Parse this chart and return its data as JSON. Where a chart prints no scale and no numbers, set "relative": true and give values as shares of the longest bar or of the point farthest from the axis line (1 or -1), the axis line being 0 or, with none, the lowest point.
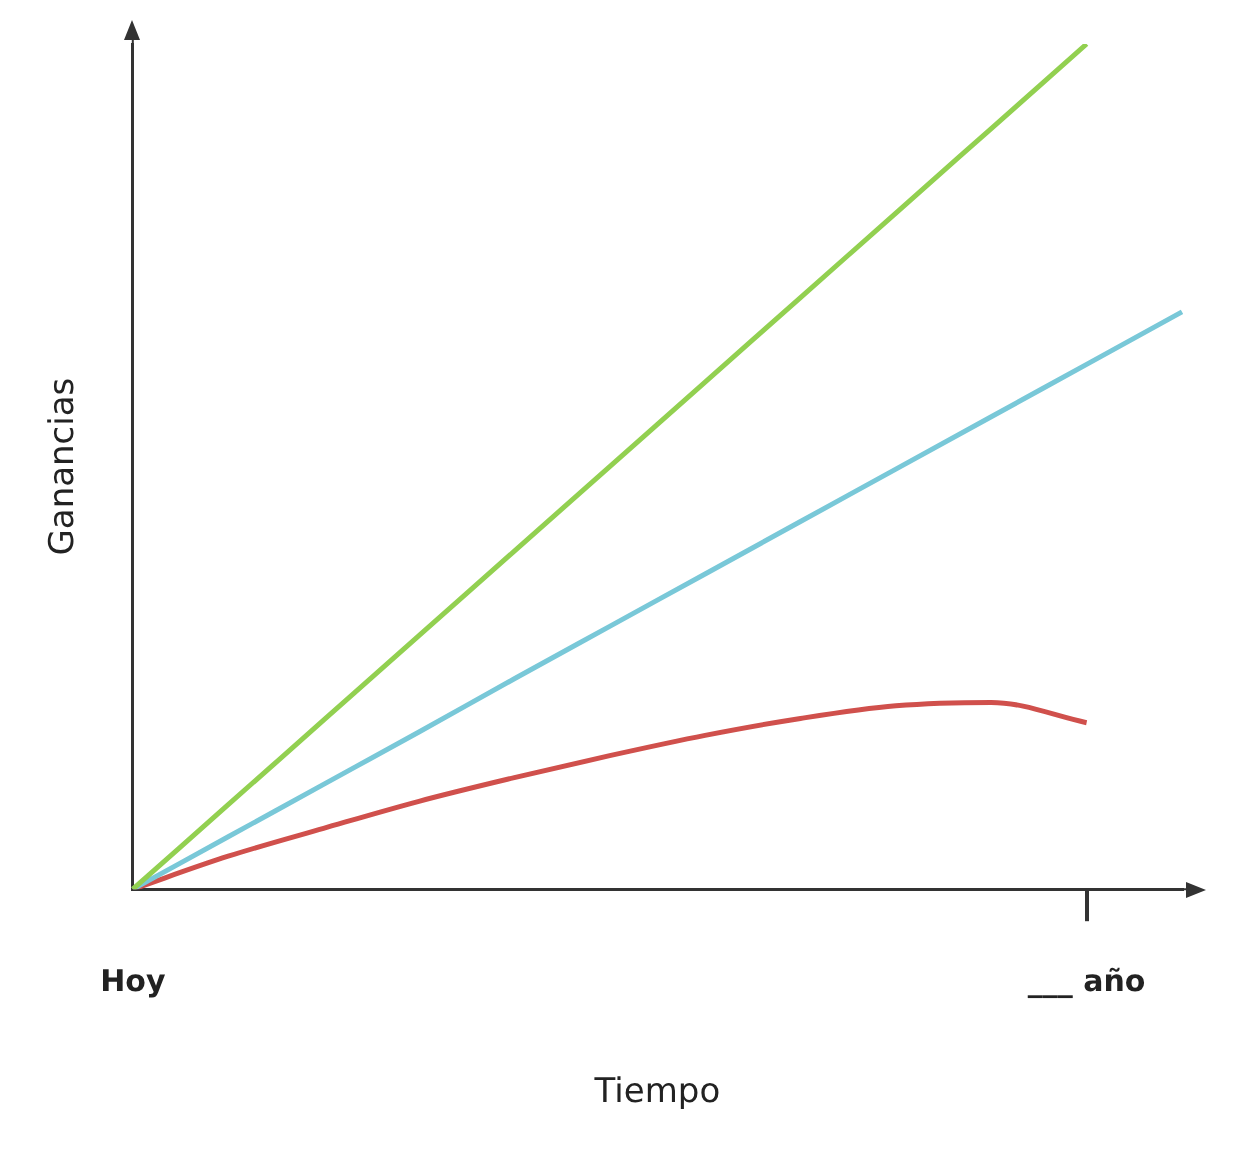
{
  "chart_data": {
    "type": "line",
    "relative": true,
    "xlabel": "Tiempo",
    "ylabel": "Ganancias",
    "categories": [
      "Hoy",
      null,
      null,
      null,
      null,
      null,
      null,
      null,
      null,
      null,
      "___ año",
      null
    ],
    "series": [
      {
        "color": "#92d050",
        "values": [
          0,
          0.1,
          0.2,
          0.3,
          0.4,
          0.5,
          0.6,
          0.7,
          0.8,
          0.9,
          1.0,
          null
        ]
      },
      {
        "color": "#79c8d8",
        "values": [
          0,
          0.062,
          0.124,
          0.186,
          0.249,
          0.311,
          0.373,
          0.435,
          0.497,
          0.559,
          0.621,
          0.683
        ]
      },
      {
        "color": "#d0504c",
        "values": [
          0,
          0.039,
          0.072,
          0.104,
          0.132,
          0.158,
          0.182,
          0.202,
          0.217,
          0.221,
          0.197,
          null
        ]
      }
    ],
    "tick_labels": "x",
    "grid": false,
    "legend": false,
    "marker": "none",
    "line_style": "solid"
  }
}
